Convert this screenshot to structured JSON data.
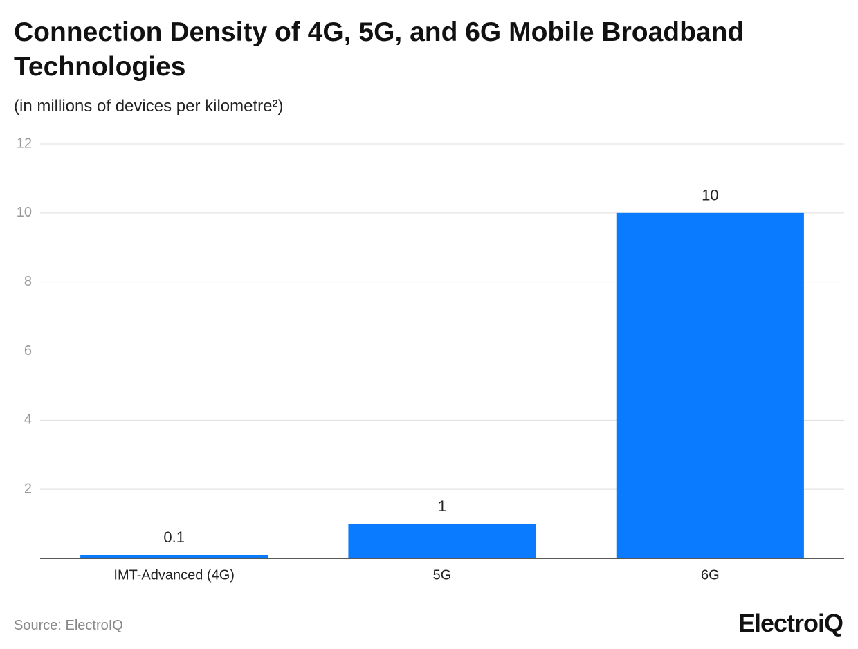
{
  "chart_data": {
    "type": "bar",
    "title": "Connection Density of 4G, 5G, and 6G Mobile Broadband Technologies",
    "subtitle": "(in millions of devices per kilometre²)",
    "categories": [
      "IMT-Advanced (4G)",
      "5G",
      "6G"
    ],
    "values": [
      0.1,
      1,
      10
    ],
    "color": "#0a7bff",
    "ylim": [
      0,
      12
    ],
    "yticks": [
      2,
      4,
      6,
      8,
      10,
      12
    ],
    "grid": true,
    "source": "Source: ElectroIQ",
    "logo": "ElectroiQ"
  }
}
